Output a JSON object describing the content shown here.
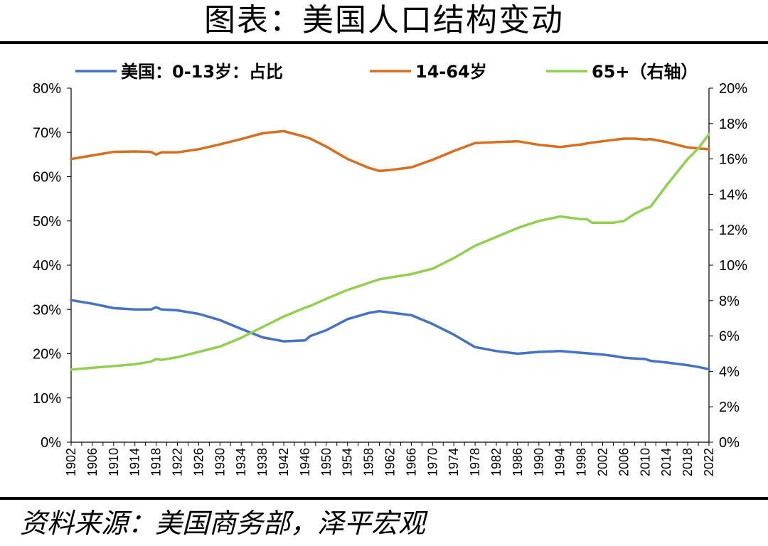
{
  "title": "图表：美国人口结构变动",
  "source": "资料来源：美国商务部，泽平宏观",
  "chart_data": {
    "type": "line",
    "x": [
      1902,
      1906,
      1910,
      1914,
      1917,
      1918,
      1919,
      1922,
      1926,
      1930,
      1934,
      1938,
      1942,
      1946,
      1947,
      1950,
      1954,
      1958,
      1960,
      1962,
      1966,
      1970,
      1974,
      1978,
      1982,
      1986,
      1990,
      1994,
      1998,
      1999,
      2000,
      2002,
      2004,
      2006,
      2008,
      2010,
      2011,
      2014,
      2018,
      2020,
      2022
    ],
    "left_axis": {
      "ylim": [
        0,
        80
      ],
      "ticks": [
        "0%",
        "10%",
        "20%",
        "30%",
        "40%",
        "50%",
        "60%",
        "70%",
        "80%"
      ]
    },
    "right_axis": {
      "ylim": [
        0,
        20
      ],
      "ticks": [
        "0%",
        "2%",
        "4%",
        "6%",
        "8%",
        "10%",
        "12%",
        "14%",
        "16%",
        "18%",
        "20%"
      ]
    },
    "x_ticks": [
      "1902",
      "1906",
      "1910",
      "1914",
      "1918",
      "1922",
      "1926",
      "1930",
      "1934",
      "1938",
      "1942",
      "1946",
      "1950",
      "1954",
      "1958",
      "1962",
      "1966",
      "1970",
      "1974",
      "1978",
      "1982",
      "1986",
      "1990",
      "1994",
      "1998",
      "2002",
      "2006",
      "2010",
      "2014",
      "2018",
      "2022"
    ],
    "series": [
      {
        "name": "美国：0-13岁：占比",
        "axis": "left",
        "color": "#4472C4",
        "values": [
          32.1,
          31.3,
          30.3,
          30.0,
          30.0,
          30.5,
          30.0,
          29.8,
          29.0,
          27.6,
          25.6,
          23.7,
          22.8,
          23.0,
          24.0,
          25.3,
          27.8,
          29.2,
          29.6,
          29.3,
          28.7,
          26.7,
          24.3,
          21.5,
          20.6,
          20.0,
          20.4,
          20.6,
          20.2,
          20.1,
          20.0,
          19.8,
          19.5,
          19.1,
          18.9,
          18.8,
          18.4,
          18.0,
          17.4,
          17.0,
          16.5
        ]
      },
      {
        "name": "14-64岁",
        "axis": "left",
        "color": "#D86F1F",
        "values": [
          64.0,
          64.8,
          65.6,
          65.7,
          65.6,
          65.0,
          65.5,
          65.5,
          66.2,
          67.3,
          68.5,
          69.8,
          70.3,
          69.0,
          68.6,
          66.8,
          64.0,
          62.0,
          61.3,
          61.5,
          62.1,
          63.8,
          65.8,
          67.6,
          67.8,
          68.0,
          67.2,
          66.7,
          67.3,
          67.5,
          67.7,
          68.0,
          68.3,
          68.6,
          68.6,
          68.4,
          68.5,
          67.8,
          66.6,
          66.4,
          66.2
        ]
      },
      {
        "name": "65+（右轴）",
        "axis": "right",
        "color": "#92D050",
        "values": [
          4.1,
          4.2,
          4.3,
          4.4,
          4.55,
          4.7,
          4.65,
          4.8,
          5.1,
          5.4,
          5.9,
          6.5,
          7.1,
          7.6,
          7.7,
          8.1,
          8.6,
          9.0,
          9.2,
          9.3,
          9.5,
          9.8,
          10.4,
          11.1,
          11.6,
          12.1,
          12.5,
          12.75,
          12.6,
          12.6,
          12.4,
          12.4,
          12.4,
          12.5,
          12.9,
          13.2,
          13.3,
          14.5,
          16.0,
          16.6,
          17.4
        ]
      }
    ]
  }
}
